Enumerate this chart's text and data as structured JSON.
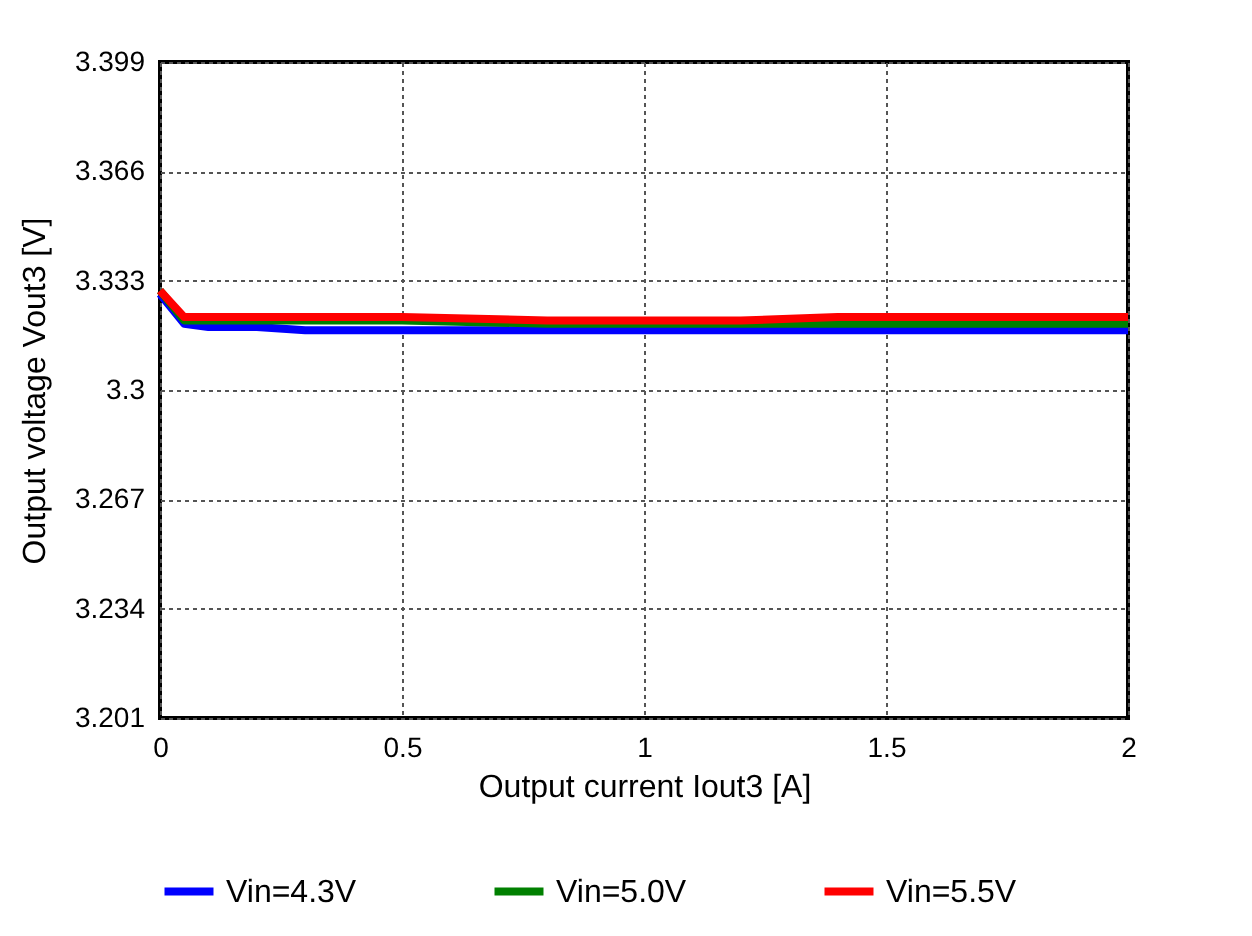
{
  "chart_data": {
    "type": "line",
    "xlabel": "Output current  Iout3 [A]",
    "ylabel": "Output voltage  Vout3 [V]",
    "xlim": [
      0,
      2
    ],
    "xticks": [
      0,
      0.5,
      1,
      1.5,
      2
    ],
    "ylim": [
      3.201,
      3.399
    ],
    "yticks": [
      3.201,
      3.234,
      3.267,
      3.3,
      3.333,
      3.366,
      3.399
    ],
    "grid": true,
    "legend": "bottom",
    "marker": "none",
    "line_style": "solid",
    "x": [
      0,
      0.05,
      0.1,
      0.2,
      0.3,
      0.5,
      0.8,
      1.0,
      1.2,
      1.4,
      1.6,
      2.0
    ],
    "series": [
      {
        "name": "Vin=4.3V",
        "color": "#0000ff",
        "values": [
          3.329,
          3.32,
          3.319,
          3.319,
          3.318,
          3.318,
          3.318,
          3.318,
          3.318,
          3.318,
          3.318,
          3.318
        ]
      },
      {
        "name": "Vin=5.0V",
        "color": "#008000",
        "values": [
          3.33,
          3.321,
          3.321,
          3.321,
          3.321,
          3.321,
          3.32,
          3.32,
          3.32,
          3.32,
          3.32,
          3.32
        ]
      },
      {
        "name": "Vin=5.5V",
        "color": "#ff0000",
        "values": [
          3.33,
          3.322,
          3.322,
          3.322,
          3.322,
          3.322,
          3.321,
          3.321,
          3.321,
          3.322,
          3.322,
          3.322
        ]
      }
    ]
  }
}
